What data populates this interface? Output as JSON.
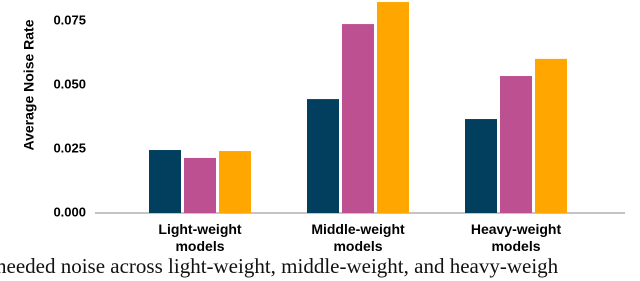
{
  "chart_data": {
    "type": "bar",
    "y_label": "Average Noise Rate",
    "categories": [
      "Light-weight models",
      "Middle-weight models",
      "Heavy-weight models"
    ],
    "series": [
      {
        "color": "#023f5e",
        "values": [
          0.0246,
          0.0445,
          0.0367
        ]
      },
      {
        "color": "#bc5090",
        "values": [
          0.0215,
          0.0738,
          0.0535
        ]
      },
      {
        "color": "#ffa600",
        "values": [
          0.0242,
          0.0824,
          0.0602
        ]
      }
    ],
    "ylim": [
      0,
      0.0832
    ],
    "yticks": [
      {
        "value": 0,
        "label": "0.000"
      },
      0.025,
      {
        "value": 0.05,
        "label": "0.050"
      },
      0.075
    ],
    "grid": false,
    "caption": "needed noise across light-weight, middle-weight, and heavy-weigh"
  }
}
